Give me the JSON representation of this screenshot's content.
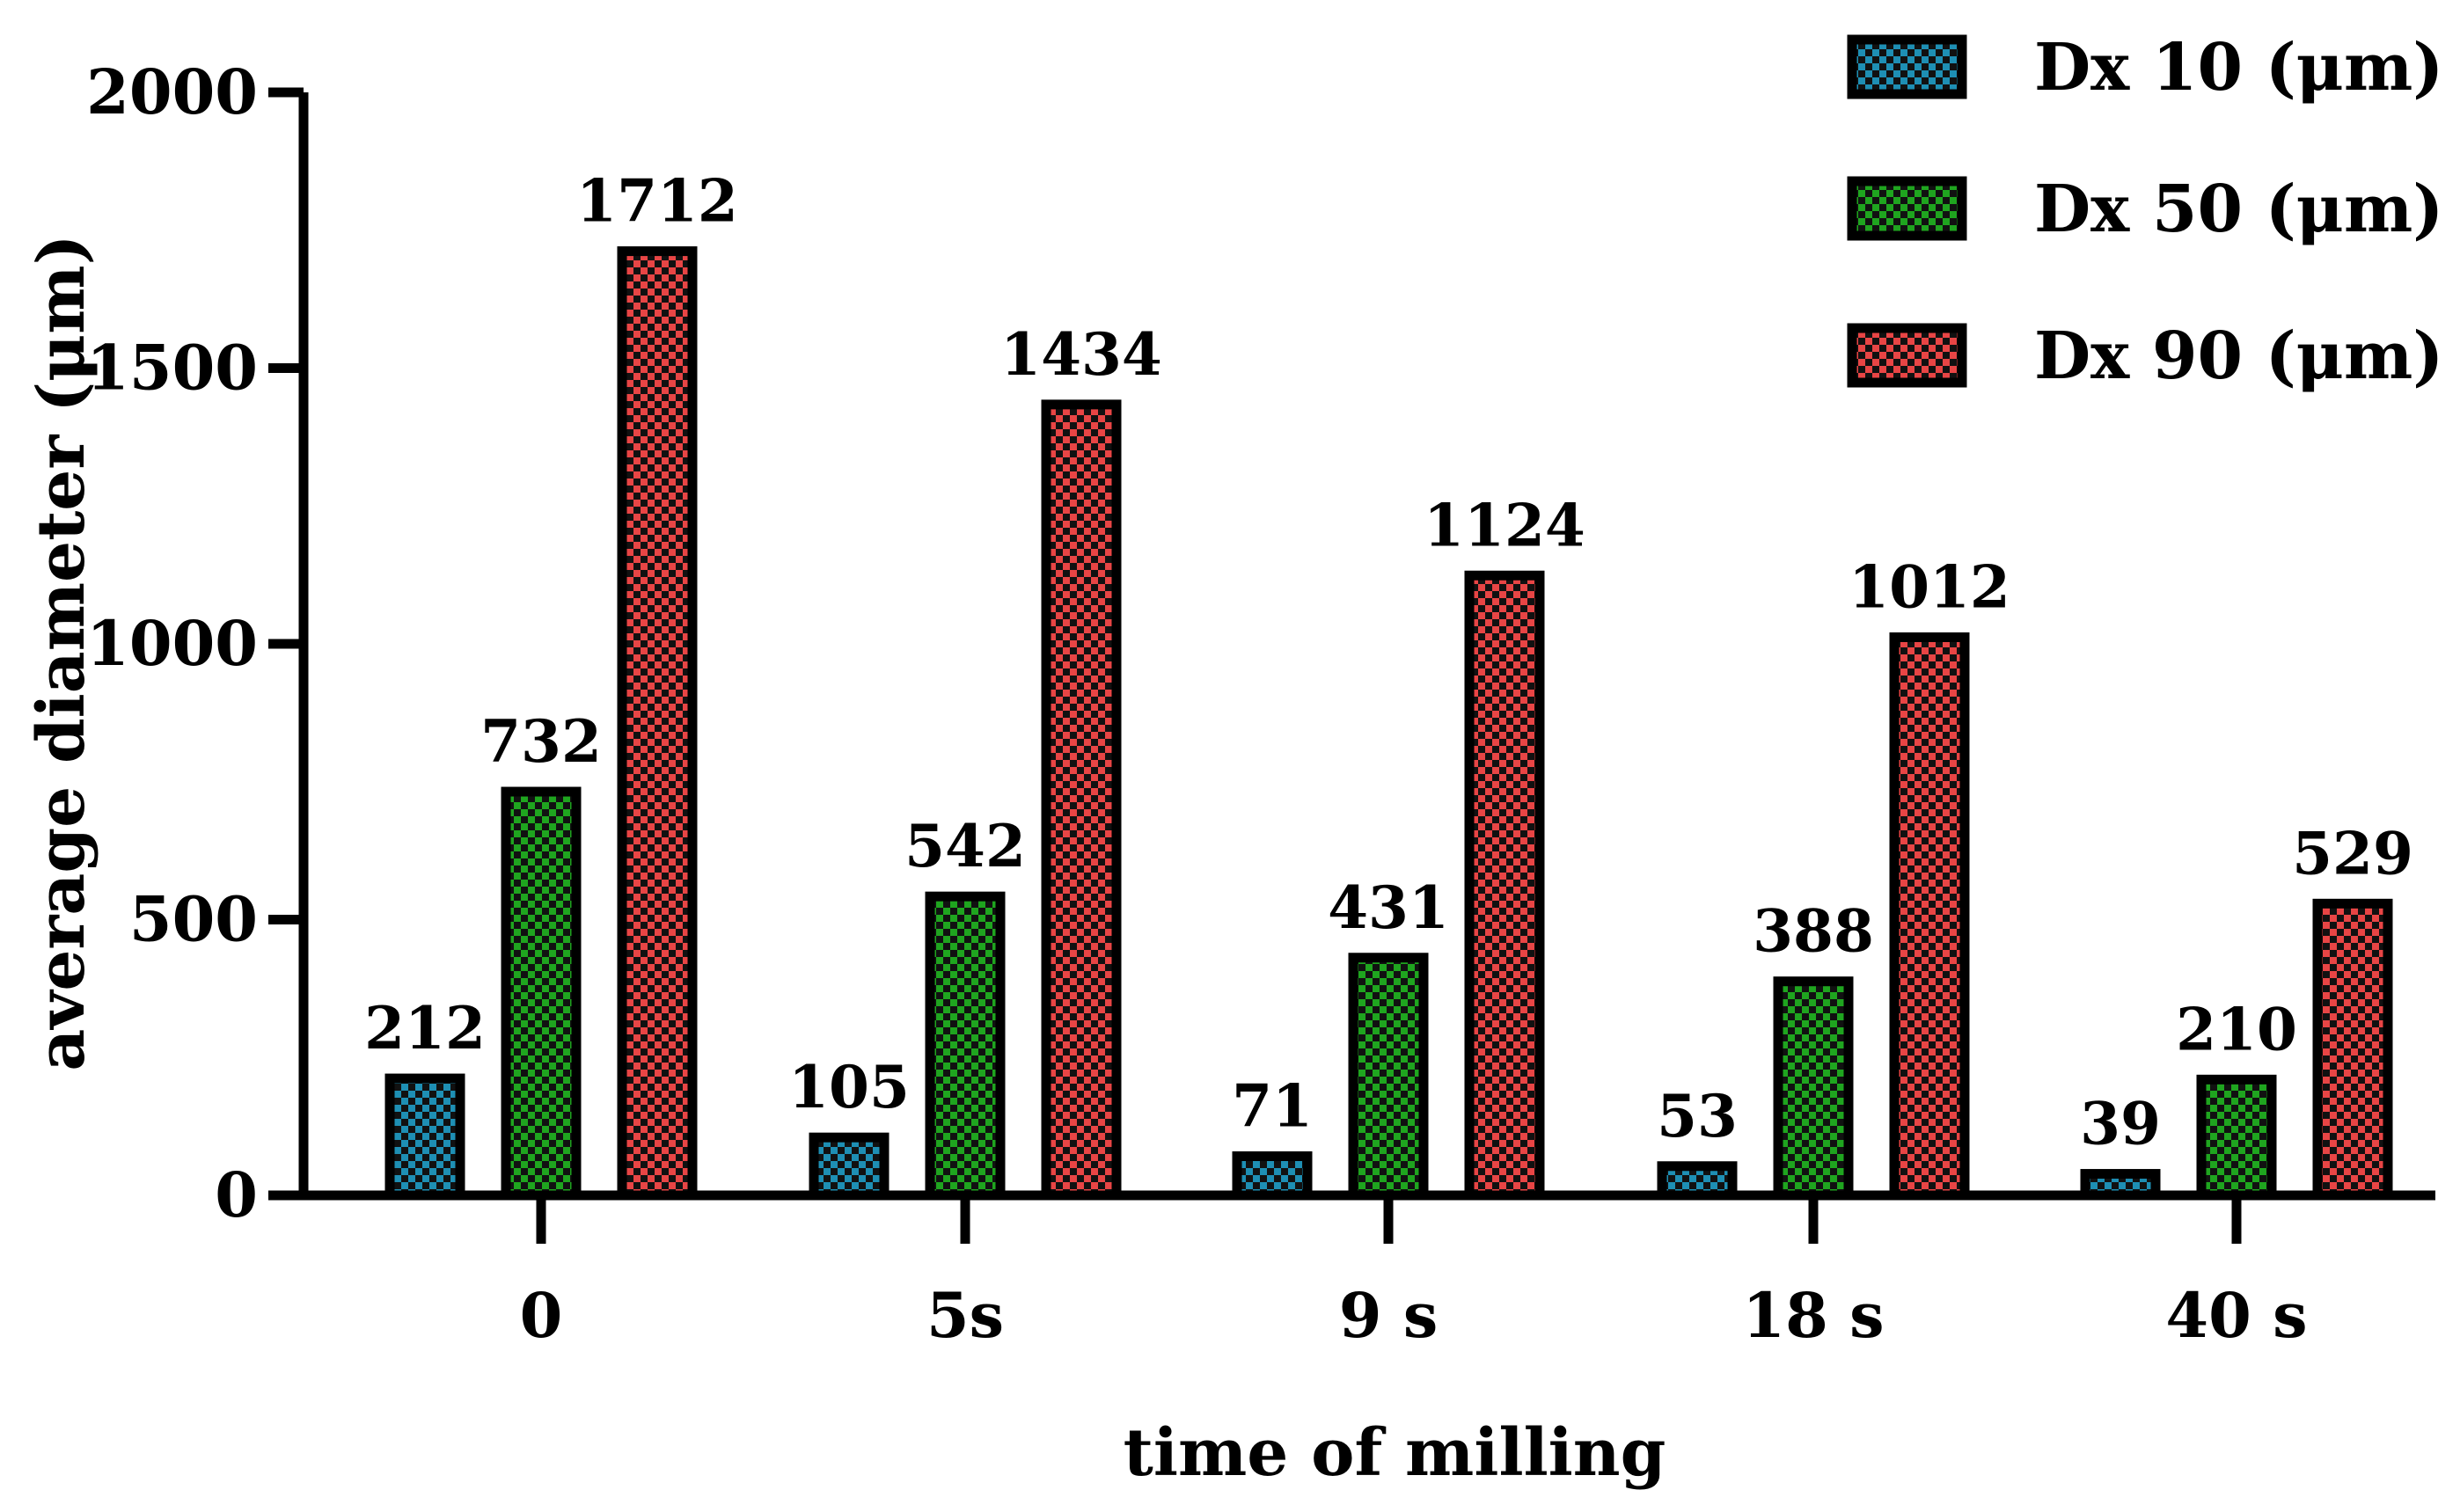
{
  "chart_data": {
    "type": "bar",
    "xlabel": "time of milling",
    "ylabel": "average diameter (μm)",
    "categories": [
      "0",
      "5s",
      "9 s",
      "18 s",
      "40 s"
    ],
    "series": [
      {
        "name": "Dx 10 (μm)",
        "color": "#1E8FB4",
        "values": [
          212,
          105,
          71,
          53,
          39
        ]
      },
      {
        "name": "Dx 50 (μm)",
        "color": "#1FA51F",
        "values": [
          732,
          542,
          431,
          388,
          210
        ]
      },
      {
        "name": "Dx 90 (μm)",
        "color": "#E84545",
        "values": [
          1712,
          1434,
          1124,
          1012,
          529
        ]
      }
    ],
    "ylim": [
      0,
      2000
    ],
    "yticks": [
      0,
      500,
      1000,
      1500,
      2000
    ],
    "legend_position": "top-right",
    "grid": false,
    "bar_fill_pattern": "checkerboard"
  }
}
